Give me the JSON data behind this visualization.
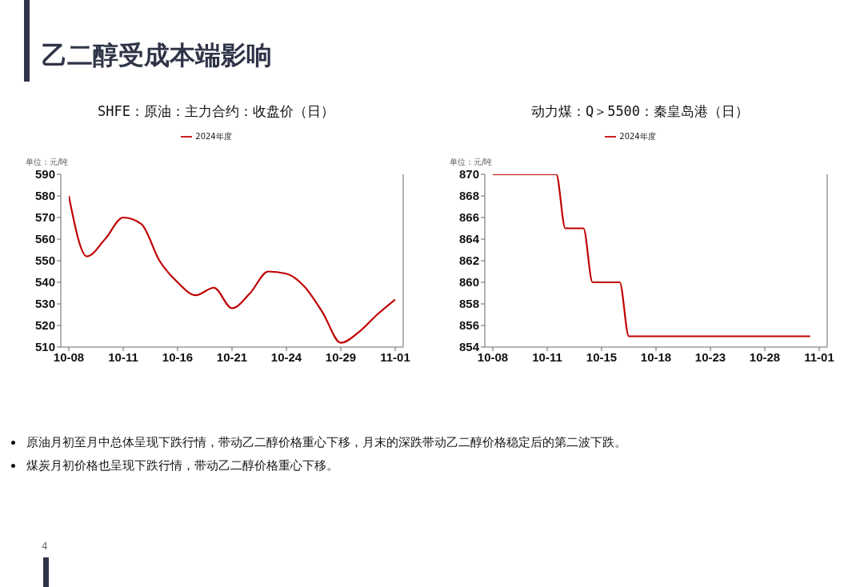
{
  "chart_data": [
    {
      "type": "other",
      "title": "乙二醇受成本端影响",
      "annotations": [
        "原油月初至月中总体呈现下跌行情，带动乙二醇价格重心下移，月末的深跌带动乙二醇价格稳定后的第二波下跌。",
        "煤炭月初价格也呈现下跌行情，带动乙二醇价格重心下移。",
        "4"
      ]
    },
    {
      "type": "line",
      "title": "SHFE：原油：主力合约：收盘价（日）",
      "annotations": [
        "单位：元/吨"
      ],
      "legend": "top",
      "grid": false,
      "ylim": [
        510,
        590
      ],
      "yticks": [
        510,
        520,
        530,
        540,
        550,
        560,
        570,
        580,
        590
      ],
      "categories": [
        "10-08",
        null,
        null,
        "10-11",
        null,
        null,
        "10-16",
        null,
        null,
        "10-21",
        null,
        null,
        "10-24",
        null,
        null,
        "10-29",
        null,
        null,
        "11-01"
      ],
      "series": [
        {
          "name": "2024年度",
          "color": "#c00000",
          "values": [
            580,
            552,
            560,
            570,
            567,
            550,
            540,
            534,
            537.5,
            528,
            535,
            545,
            544,
            538,
            526,
            512,
            517,
            525,
            532
          ]
        }
      ]
    },
    {
      "type": "line",
      "title": "动力煤：Q＞5500：秦皇岛港（日）",
      "annotations": [
        "单位：元/吨"
      ],
      "legend": "top",
      "grid": false,
      "ylim": [
        854,
        870
      ],
      "yticks": [
        854,
        856,
        858,
        860,
        862,
        864,
        866,
        868,
        870
      ],
      "categories": [
        "10-08",
        null,
        null,
        null,
        null,
        null,
        "10-11",
        null,
        null,
        null,
        null,
        null,
        "10-15",
        null,
        null,
        null,
        null,
        null,
        "10-18",
        null,
        null,
        null,
        null,
        null,
        "10-23",
        null,
        null,
        null,
        null,
        null,
        "10-28",
        null,
        null,
        null,
        null,
        null,
        "11-01"
      ],
      "series": [
        {
          "name": "2024年度",
          "color": "#c00000",
          "values": [
            870,
            870,
            870,
            870,
            870,
            870,
            870,
            870,
            865,
            865,
            865,
            860,
            860,
            860,
            860,
            855,
            855,
            855,
            855,
            855,
            855,
            855,
            855,
            855,
            855,
            855,
            855,
            855,
            855,
            855,
            855,
            855,
            855,
            855,
            855,
            855,
            null
          ]
        }
      ]
    }
  ]
}
